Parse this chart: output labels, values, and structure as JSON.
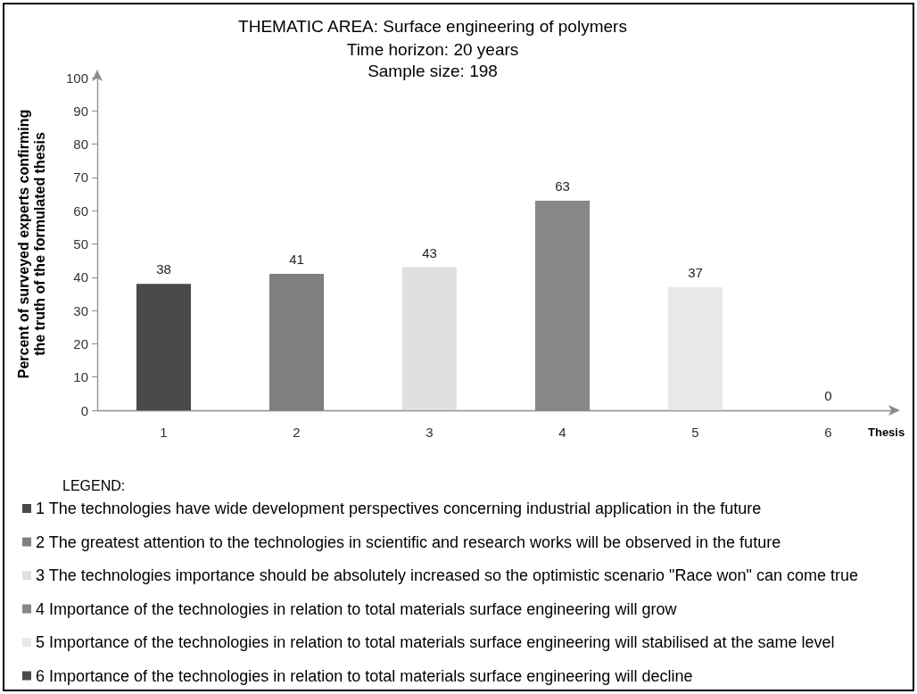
{
  "chart_data": {
    "type": "bar",
    "title": "THEMATIC AREA: Surface engineering of polymers",
    "subtitle": "Time horizon: 20 years\nSample size: 198",
    "xlabel": "Thesis",
    "ylabel": "Percent of surveyed experts confirming\nthe truth of the formulated thesis",
    "legend_title": "LEGEND:",
    "categories": [
      "1",
      "2",
      "3",
      "4",
      "5",
      "6"
    ],
    "series": [
      {
        "name": "1 The technologies have wide development perspectives concerning industrial application in the future",
        "color": "#4a4a4a",
        "values": [
          38,
          null,
          null,
          null,
          null,
          null
        ]
      },
      {
        "name": "2 The greatest attention to the technologies in scientific and research works will be observed in the future",
        "color": "#7f7f7f",
        "values": [
          null,
          41,
          null,
          null,
          null,
          null
        ]
      },
      {
        "name": "3 The technologies importance should be absolutely increased so the optimistic scenario \"Race won\" can come true",
        "color": "#e0e0e0",
        "values": [
          null,
          null,
          43,
          null,
          null,
          null
        ]
      },
      {
        "name": "4 Importance of the technologies in relation to total materials surface engineering will grow",
        "color": "#878787",
        "values": [
          null,
          null,
          null,
          63,
          null,
          null
        ]
      },
      {
        "name": "5 Importance of the technologies in relation to total materials surface engineering will stabilised at the same level",
        "color": "#e8e8e8",
        "values": [
          null,
          null,
          null,
          null,
          37,
          null
        ]
      },
      {
        "name": "6 Importance of the technologies in relation to total materials surface engineering will decline",
        "color": "#4a4a4a",
        "values": [
          null,
          null,
          null,
          null,
          null,
          0
        ]
      }
    ],
    "ylim": [
      0,
      100
    ],
    "yticks": [
      0,
      10,
      20,
      30,
      40,
      50,
      60,
      70,
      80,
      90,
      100
    ],
    "legend": "bottom left",
    "data_labels": true
  }
}
